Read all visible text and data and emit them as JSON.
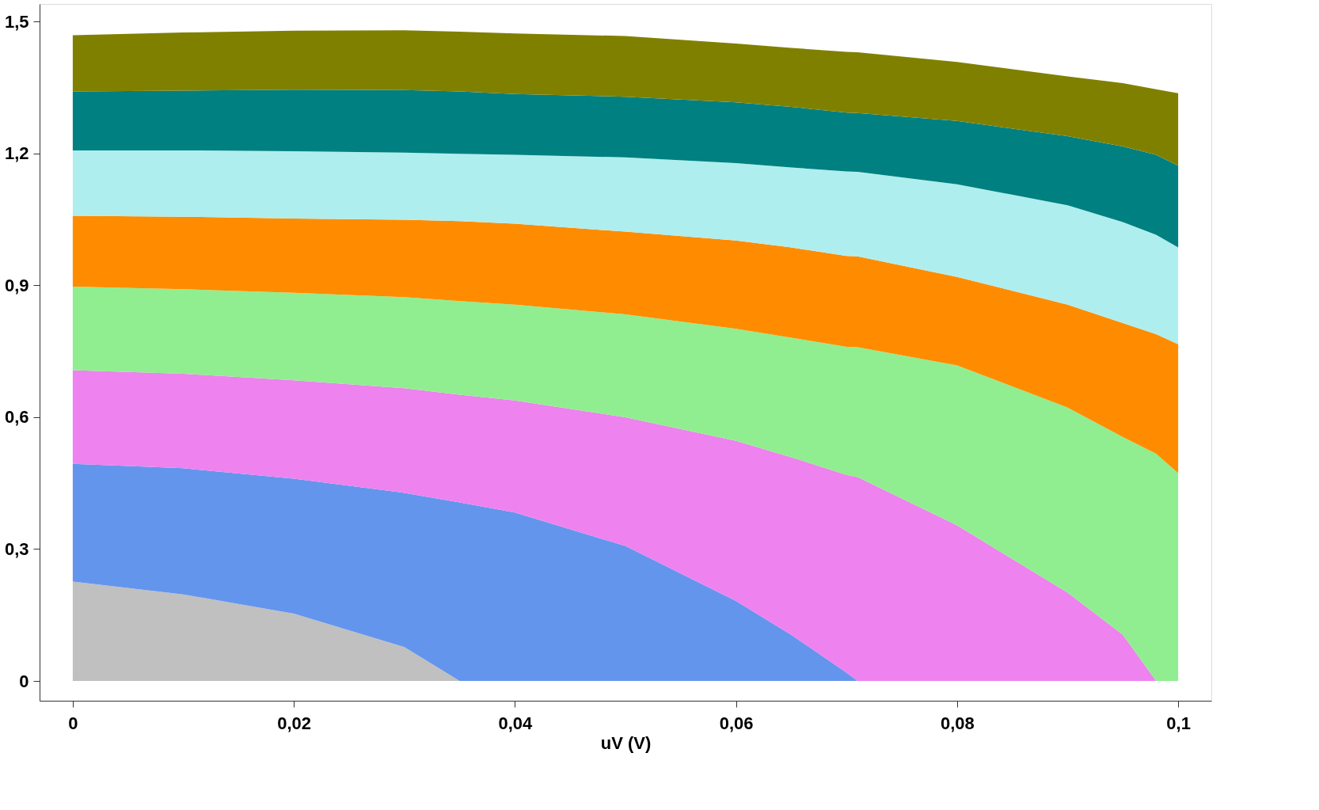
{
  "chart_data": {
    "type": "area",
    "stacked": true,
    "xlabel": "uV (V)",
    "x": [
      0,
      0.01,
      0.02,
      0.03,
      0.035,
      0.04,
      0.05,
      0.06,
      0.065,
      0.07,
      0.071,
      0.08,
      0.09,
      0.095,
      0.098,
      0.1
    ],
    "series": [
      {
        "color": "#c0c0c0",
        "values": [
          0.226,
          0.197,
          0.153,
          0.077,
          0,
          0,
          0,
          0,
          0,
          0,
          0,
          0,
          0,
          0,
          0,
          0
        ]
      },
      {
        "color": "#6495ed",
        "values": [
          0.268,
          0.287,
          0.307,
          0.351,
          0.406,
          0.383,
          0.307,
          0.182,
          0.105,
          0.019,
          0,
          0,
          0,
          0,
          0,
          0
        ]
      },
      {
        "color": "#ee82ee",
        "values": [
          0.213,
          0.215,
          0.224,
          0.238,
          0.245,
          0.255,
          0.293,
          0.364,
          0.404,
          0.45,
          0.464,
          0.354,
          0.201,
          0.105,
          0,
          0
        ]
      },
      {
        "color": "#90ee90",
        "values": [
          0.19,
          0.192,
          0.199,
          0.207,
          0.213,
          0.218,
          0.234,
          0.255,
          0.272,
          0.291,
          0.295,
          0.364,
          0.421,
          0.45,
          0.517,
          0.473
        ]
      },
      {
        "color": "#ff8c00",
        "values": [
          0.161,
          0.165,
          0.169,
          0.176,
          0.182,
          0.184,
          0.188,
          0.201,
          0.205,
          0.207,
          0.207,
          0.201,
          0.234,
          0.259,
          0.272,
          0.293
        ]
      },
      {
        "color": "#afeeee",
        "values": [
          0.149,
          0.151,
          0.153,
          0.153,
          0.153,
          0.157,
          0.169,
          0.176,
          0.182,
          0.192,
          0.192,
          0.211,
          0.226,
          0.23,
          0.226,
          0.22
        ]
      },
      {
        "color": "#008080",
        "values": [
          0.134,
          0.136,
          0.14,
          0.142,
          0.142,
          0.138,
          0.138,
          0.138,
          0.138,
          0.134,
          0.134,
          0.144,
          0.157,
          0.172,
          0.182,
          0.186
        ]
      },
      {
        "color": "#808000",
        "values": [
          0.128,
          0.132,
          0.134,
          0.136,
          0.136,
          0.138,
          0.138,
          0.134,
          0.134,
          0.138,
          0.138,
          0.134,
          0.136,
          0.144,
          0.149,
          0.165
        ]
      }
    ],
    "xlim": [
      -0.003,
      0.103
    ],
    "ylim": [
      -0.045,
      1.54
    ],
    "xticks": [
      0,
      {
        "value": 0.02,
        "label": "0,02"
      },
      {
        "value": 0.04,
        "label": "0,04"
      },
      {
        "value": 0.06,
        "label": "0,06"
      },
      {
        "value": 0.08,
        "label": "0,08"
      },
      {
        "value": 0.1,
        "label": "0,1"
      }
    ],
    "yticks": [
      0,
      {
        "value": 0.3,
        "label": "0,3"
      },
      {
        "value": 0.6,
        "label": "0,6"
      },
      {
        "value": 0.9,
        "label": "0,9"
      },
      {
        "value": 1.2,
        "label": "1,2"
      },
      {
        "value": 1.5,
        "label": "1,5"
      }
    ]
  }
}
